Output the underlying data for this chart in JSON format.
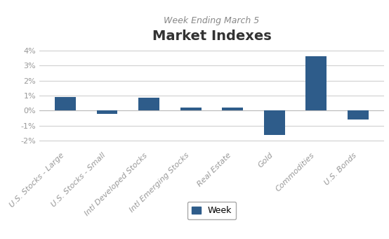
{
  "title": "Market Indexes",
  "subtitle": "Week Ending March 5",
  "categories": [
    "U.S. Stocks - Large",
    "U.S. Stocks - Small",
    "Intl Developed Stocks",
    "Intl Emerging Stocks",
    "Real Estate",
    "Gold",
    "Commodities",
    "U.S. Bonds"
  ],
  "values": [
    0.009,
    -0.002,
    0.0085,
    0.002,
    0.0022,
    -0.016,
    0.036,
    -0.006
  ],
  "bar_color": "#2E5C8A",
  "legend_label": "Week",
  "ylim": [
    -0.025,
    0.045
  ],
  "yticks": [
    -0.02,
    -0.01,
    0.0,
    0.01,
    0.02,
    0.03,
    0.04
  ],
  "ytick_labels": [
    "-2%",
    "-1%",
    "0%",
    "1%",
    "2%",
    "3%",
    "4%"
  ],
  "background_color": "#ffffff",
  "grid_color": "#d0d0d0",
  "title_fontsize": 14,
  "subtitle_fontsize": 9,
  "tick_label_fontsize": 8,
  "legend_fontsize": 9
}
